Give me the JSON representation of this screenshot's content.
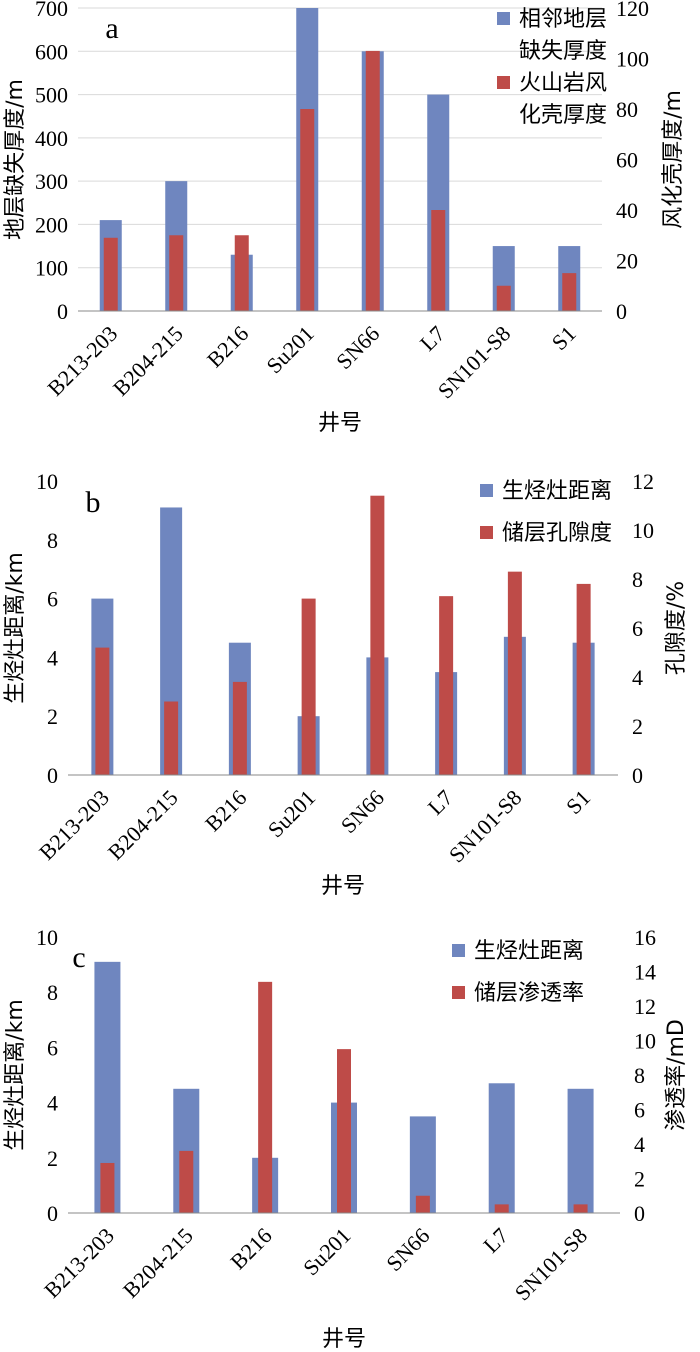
{
  "chart_data": [
    {
      "type": "bar",
      "panel_label": "a",
      "categories": [
        "B213-203",
        "B204-215",
        "B216",
        "Su201",
        "SN66",
        "L7",
        "SN101-S8",
        "S1"
      ],
      "xlabel": "井号",
      "ylabel": "地层缺失厚度/m",
      "y2label": "风化壳厚度/m",
      "ylim": [
        0,
        700
      ],
      "y_ticks": [
        0,
        100,
        200,
        300,
        400,
        500,
        600,
        700
      ],
      "y2lim": [
        0,
        120
      ],
      "y2_ticks": [
        0,
        20,
        40,
        60,
        80,
        100,
        120
      ],
      "grid": true,
      "legend_position": "top-right",
      "series": [
        {
          "name": "相邻地层缺失厚度",
          "axis": "left",
          "color": "#6f86bf",
          "values": [
            210,
            300,
            130,
            700,
            600,
            500,
            150,
            150
          ]
        },
        {
          "name": "火山岩风化壳厚度",
          "axis": "right",
          "color": "#be4b48",
          "values": [
            29,
            30,
            30,
            80,
            103,
            40,
            10,
            15
          ]
        }
      ],
      "legend_lines": [
        [
          "相邻地层",
          "缺失厚度"
        ],
        [
          "火山岩风",
          "化壳厚度"
        ]
      ]
    },
    {
      "type": "bar",
      "panel_label": "b",
      "categories": [
        "B213-203",
        "B204-215",
        "B216",
        "Su201",
        "SN66",
        "L7",
        "SN101-S8",
        "S1"
      ],
      "xlabel": "井号",
      "ylabel": "生烃灶距离/km",
      "y2label": "孔隙度/%",
      "ylim": [
        0,
        10
      ],
      "y_ticks": [
        0,
        2,
        4,
        6,
        8,
        10
      ],
      "y2lim": [
        0,
        12
      ],
      "y2_ticks": [
        0,
        2,
        4,
        6,
        8,
        10,
        12
      ],
      "grid": false,
      "legend_position": "top-right",
      "series": [
        {
          "name": "生烃灶距离",
          "axis": "left",
          "color": "#6f86bf",
          "values": [
            6.0,
            9.1,
            4.5,
            2.0,
            4.0,
            3.5,
            4.7,
            4.5
          ]
        },
        {
          "name": "储层孔隙度",
          "axis": "right",
          "color": "#be4b48",
          "values": [
            5.2,
            3.0,
            3.8,
            7.2,
            11.4,
            7.3,
            8.3,
            7.8
          ]
        }
      ],
      "legend_lines": [
        [
          "生烃灶距离"
        ],
        [
          "储层孔隙度"
        ]
      ]
    },
    {
      "type": "bar",
      "panel_label": "c",
      "categories": [
        "B213-203",
        "B204-215",
        "B216",
        "Su201",
        "SN66",
        "L7",
        "SN101-S8"
      ],
      "xlabel": "井号",
      "ylabel": "生烃灶距离/km",
      "y2label": "渗透率/mD",
      "ylim": [
        0,
        10
      ],
      "y_ticks": [
        0,
        2,
        4,
        6,
        8,
        10
      ],
      "y2lim": [
        0,
        16
      ],
      "y2_ticks": [
        0,
        2,
        4,
        6,
        8,
        10,
        12,
        14,
        16
      ],
      "grid": false,
      "legend_position": "top-right",
      "series": [
        {
          "name": "生烃灶距离",
          "axis": "left",
          "color": "#6f86bf",
          "values": [
            9.1,
            4.5,
            2.0,
            4.0,
            3.5,
            4.7,
            4.5
          ]
        },
        {
          "name": "储层渗透率",
          "axis": "right",
          "color": "#be4b48",
          "values": [
            2.9,
            3.6,
            13.4,
            9.5,
            1.0,
            0.5,
            0.5
          ]
        }
      ],
      "legend_lines": [
        [
          "生烃灶距离"
        ],
        [
          "储层渗透率"
        ]
      ]
    }
  ]
}
